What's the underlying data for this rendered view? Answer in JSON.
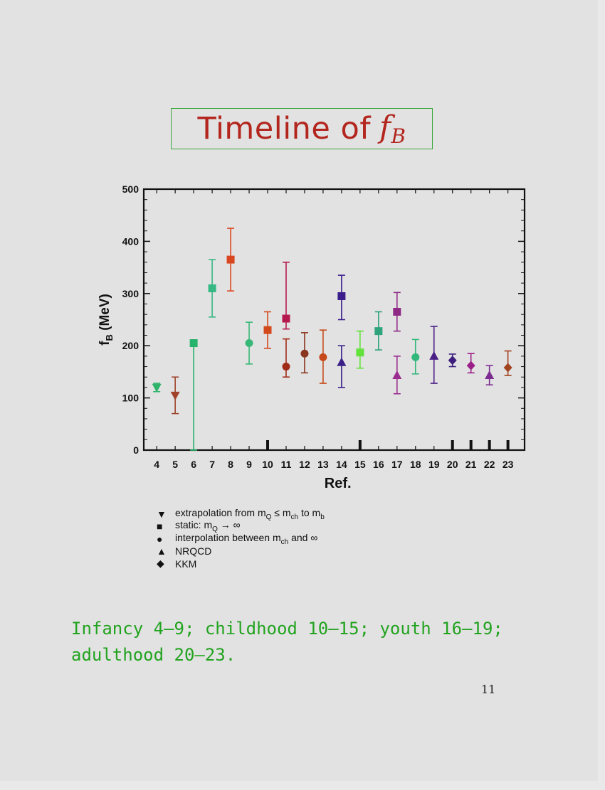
{
  "slide": {
    "title_text": "Timeline of",
    "title_symbol": "f",
    "title_symbol_sub": "B",
    "caption_line1": "Infancy 4–9; childhood 10–15; youth 16–19;",
    "caption_line2": "adulthood 20–23.",
    "page_number": "11"
  },
  "legend": [
    {
      "marker": "tri-down",
      "glyph": "▼",
      "text_html": "extrapolation from m<sub>Q</sub> ≤ m<sub>ch</sub> to m<sub>b</sub>"
    },
    {
      "marker": "square",
      "glyph": "■",
      "text_html": "static: m<sub>Q</sub> → ∞"
    },
    {
      "marker": "circle",
      "glyph": "●",
      "text_html": "interpolation between m<sub>ch</sub> and ∞"
    },
    {
      "marker": "tri-up",
      "glyph": "▲",
      "text_html": "NRQCD"
    },
    {
      "marker": "diamond",
      "glyph": "◆",
      "text_html": "KKM"
    }
  ],
  "chart_data": {
    "type": "scatter",
    "xlabel": "Ref.",
    "ylabel": "f",
    "ylabel_sub": "B",
    "ylabel_unit": " (MeV)",
    "xlim": [
      3.3,
      23.9
    ],
    "ylim": [
      0,
      500
    ],
    "xticks": [
      4,
      5,
      6,
      7,
      8,
      9,
      10,
      11,
      12,
      13,
      14,
      15,
      16,
      17,
      18,
      19,
      20,
      21,
      22,
      23
    ],
    "yticks": [
      0,
      100,
      200,
      300,
      400,
      500
    ],
    "era_boundaries": [
      10,
      15,
      20,
      21,
      22,
      23
    ],
    "points": [
      {
        "ref": 4,
        "value": 120,
        "lo": 112,
        "hi": 128,
        "marker": "tri-down",
        "color": "#2fb36a"
      },
      {
        "ref": 5,
        "value": 105,
        "lo": 70,
        "hi": 140,
        "marker": "tri-down",
        "color": "#a0412a"
      },
      {
        "ref": 6,
        "value": 205,
        "lo": 0,
        "hi": 205,
        "marker": "square",
        "color": "#27b36b"
      },
      {
        "ref": 7,
        "value": 310,
        "lo": 255,
        "hi": 365,
        "marker": "square",
        "color": "#35b883"
      },
      {
        "ref": 8,
        "value": 365,
        "lo": 305,
        "hi": 425,
        "marker": "square",
        "color": "#d9461f"
      },
      {
        "ref": 9,
        "value": 205,
        "lo": 165,
        "hi": 245,
        "marker": "circle",
        "color": "#38b878"
      },
      {
        "ref": 10,
        "value": 230,
        "lo": 195,
        "hi": 265,
        "marker": "square",
        "color": "#d24a1c"
      },
      {
        "ref": 11,
        "value": 252,
        "lo": 232,
        "hi": 360,
        "marker": "square",
        "color": "#b4184e"
      },
      {
        "ref": 11,
        "value": 160,
        "lo": 140,
        "hi": 213,
        "marker": "circle",
        "color": "#a02a18"
      },
      {
        "ref": 12,
        "value": 185,
        "lo": 148,
        "hi": 225,
        "marker": "circle",
        "color": "#8a3520"
      },
      {
        "ref": 13,
        "value": 178,
        "lo": 128,
        "hi": 230,
        "marker": "circle",
        "color": "#c5491a"
      },
      {
        "ref": 14,
        "value": 295,
        "lo": 250,
        "hi": 335,
        "marker": "square",
        "color": "#3b1d8c"
      },
      {
        "ref": 14,
        "value": 168,
        "lo": 120,
        "hi": 200,
        "marker": "tri-up",
        "color": "#3a1f88"
      },
      {
        "ref": 15,
        "value": 187,
        "lo": 157,
        "hi": 228,
        "marker": "square",
        "color": "#62e23a"
      },
      {
        "ref": 16,
        "value": 228,
        "lo": 192,
        "hi": 265,
        "marker": "square",
        "color": "#2ea37c"
      },
      {
        "ref": 17,
        "value": 265,
        "lo": 228,
        "hi": 302,
        "marker": "square",
        "color": "#8e2a86"
      },
      {
        "ref": 17,
        "value": 143,
        "lo": 108,
        "hi": 180,
        "marker": "tri-up",
        "color": "#9b2c8f"
      },
      {
        "ref": 18,
        "value": 178,
        "lo": 146,
        "hi": 212,
        "marker": "circle",
        "color": "#33b87b"
      },
      {
        "ref": 19,
        "value": 180,
        "lo": 128,
        "hi": 237,
        "marker": "tri-up",
        "color": "#4a1f86"
      },
      {
        "ref": 20,
        "value": 172,
        "lo": 160,
        "hi": 184,
        "marker": "diamond",
        "color": "#3d1e7e"
      },
      {
        "ref": 21,
        "value": 162,
        "lo": 148,
        "hi": 185,
        "marker": "diamond",
        "color": "#9c1f88"
      },
      {
        "ref": 22,
        "value": 143,
        "lo": 125,
        "hi": 162,
        "marker": "tri-up",
        "color": "#7d2c92"
      },
      {
        "ref": 23,
        "value": 158,
        "lo": 143,
        "hi": 190,
        "marker": "diamond",
        "color": "#a0431e"
      }
    ]
  }
}
